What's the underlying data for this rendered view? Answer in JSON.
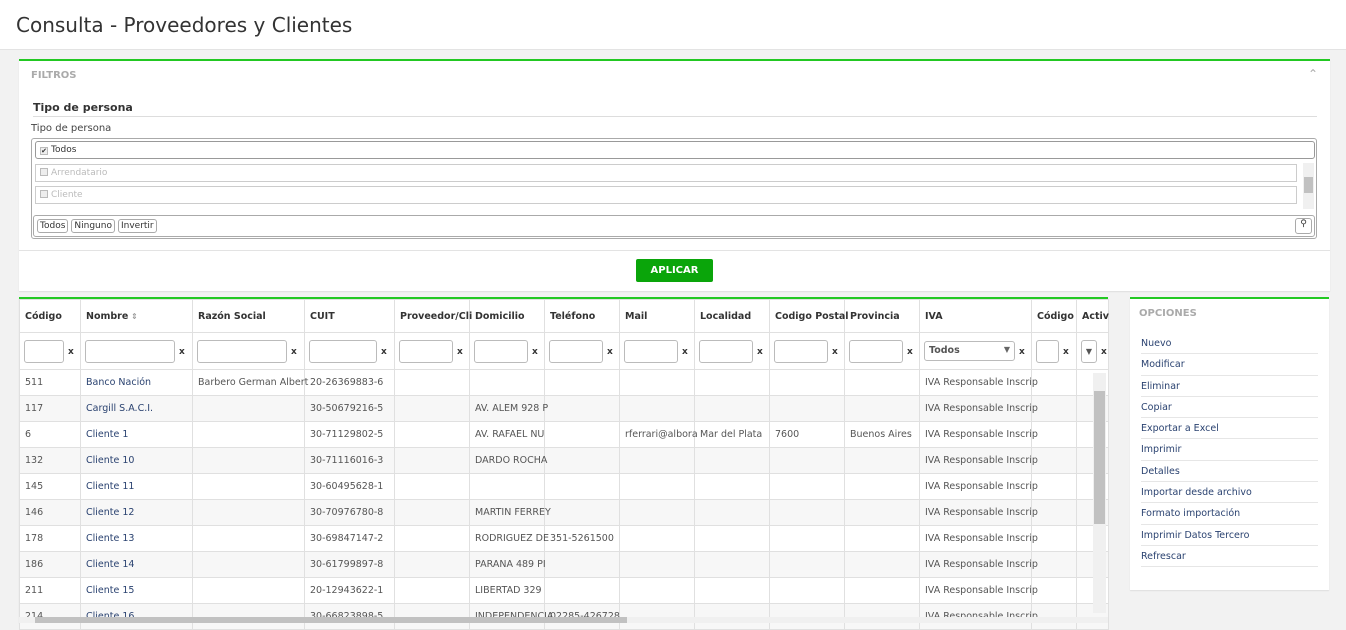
{
  "header": {
    "title": "Consulta - Proveedores y Clientes"
  },
  "filters": {
    "panel_title": "FILTROS",
    "section_title": "Tipo de persona",
    "field_label": "Tipo de persona",
    "options": [
      {
        "label": "Todos",
        "checked": true
      },
      {
        "label": "Arrendatario",
        "checked": false
      },
      {
        "label": "Cliente",
        "checked": false
      }
    ],
    "buttons": {
      "all": "Todos",
      "none": "Ninguno",
      "invert": "Invertir"
    },
    "apply": "APLICAR"
  },
  "grid": {
    "columns": [
      "Código",
      "Nombre",
      "Razón Social",
      "CUIT",
      "Proveedor/Cli",
      "Domicilio",
      "Teléfono",
      "Mail",
      "Localidad",
      "Codigo Postal",
      "Provincia",
      "IVA",
      "Código",
      "Activ"
    ],
    "sorted_column": "Nombre",
    "iva_filter": "Todos",
    "rows": [
      [
        "511",
        "Banco Nación",
        "Barbero German Albert",
        "20-26369883-6",
        "",
        "",
        "",
        "",
        "",
        "",
        "",
        "IVA Responsable Inscrip",
        "",
        ""
      ],
      [
        "117",
        "Cargill S.A.C.I.",
        "",
        "30-50679216-5",
        "",
        "AV. ALEM 928 P",
        "",
        "",
        "",
        "",
        "",
        "IVA Responsable Inscrip",
        "",
        ""
      ],
      [
        "6",
        "Cliente 1",
        "",
        "30-71129802-5",
        "",
        "AV. RAFAEL NU",
        "",
        "rferrari@albora",
        "Mar del Plata",
        "7600",
        "Buenos Aires",
        "IVA Responsable Inscrip",
        "",
        ""
      ],
      [
        "132",
        "Cliente 10",
        "",
        "30-71116016-3",
        "",
        "DARDO ROCHA",
        "",
        "",
        "",
        "",
        "",
        "IVA Responsable Inscrip",
        "",
        ""
      ],
      [
        "145",
        "Cliente 11",
        "",
        "30-60495628-1",
        "",
        "",
        "",
        "",
        "",
        "",
        "",
        "IVA Responsable Inscrip",
        "",
        ""
      ],
      [
        "146",
        "Cliente 12",
        "",
        "30-70976780-8",
        "",
        "MARTIN FERREY",
        "",
        "",
        "",
        "",
        "",
        "IVA Responsable Inscrip",
        "",
        ""
      ],
      [
        "178",
        "Cliente 13",
        "",
        "30-69847147-2",
        "",
        "RODRIGUEZ DE",
        "351-5261500",
        "",
        "",
        "",
        "",
        "IVA Responsable Inscrip",
        "",
        ""
      ],
      [
        "186",
        "Cliente 14",
        "",
        "30-61799897-8",
        "",
        "PARANA 489 PI",
        "",
        "",
        "",
        "",
        "",
        "IVA Responsable Inscrip",
        "",
        ""
      ],
      [
        "211",
        "Cliente 15",
        "",
        "20-12943622-1",
        "",
        "LIBERTAD 329",
        "",
        "",
        "",
        "",
        "",
        "IVA Responsable Inscrip",
        "",
        ""
      ],
      [
        "214",
        "Cliente 16",
        "",
        "30-66823898-5",
        "",
        "INDEPENDENCIA",
        "02285-426728",
        "",
        "",
        "",
        "",
        "IVA Responsable Inscrip",
        "",
        ""
      ]
    ]
  },
  "options": {
    "title": "OPCIONES",
    "items": [
      "Nuevo",
      "Modificar",
      "Eliminar",
      "Copiar",
      "Exportar a Excel",
      "Imprimir",
      "Detalles",
      "Importar desde archivo",
      "Formato importación",
      "Imprimir Datos Tercero",
      "Refrescar"
    ]
  }
}
